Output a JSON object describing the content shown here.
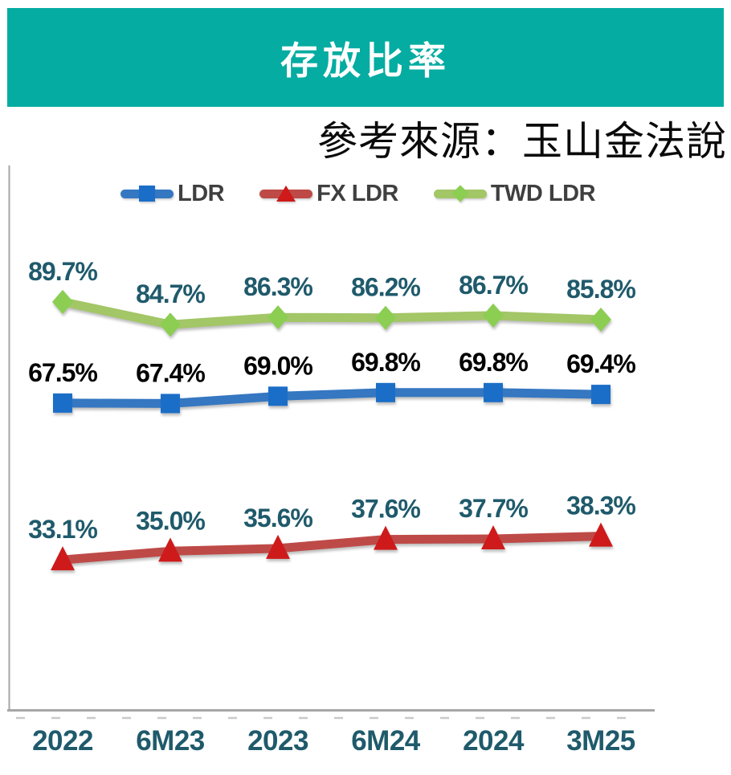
{
  "header": {
    "title": "存放比率",
    "bg_color": "#04ACA1",
    "text_color": "#FFFFFF"
  },
  "source_note": "參考來源：玉山金法說",
  "colors": {
    "axis_line": "#A6A6A6",
    "tick_dash": "#C9C9C9",
    "legend_text": "#3F3F3F",
    "teal_label": "#1F5A6B",
    "black_label": "#000000"
  },
  "chart_data": {
    "type": "line",
    "title": "存放比率",
    "categories": [
      "2022",
      "6M23",
      "2023",
      "6M24",
      "2024",
      "3M25"
    ],
    "series": [
      {
        "name": "LDR",
        "marker": "square",
        "line_color": "#3577C1",
        "marker_color": "#1B6EC7",
        "label_color": "#000000",
        "values": [
          67.5,
          67.4,
          69.0,
          69.8,
          69.8,
          69.4
        ]
      },
      {
        "name": "FX LDR",
        "marker": "triangle",
        "line_color": "#BE4A47",
        "marker_color": "#CE1A1A",
        "label_color": "#1F5A6B",
        "values": [
          33.1,
          35.0,
          35.6,
          37.6,
          37.7,
          38.3
        ]
      },
      {
        "name": "TWD LDR",
        "marker": "diamond",
        "line_color": "#A3C667",
        "marker_color": "#8BCE52",
        "label_color": "#1F5A6B",
        "values": [
          89.7,
          84.7,
          86.3,
          86.2,
          86.7,
          85.8
        ]
      }
    ],
    "value_suffix": "%",
    "data_labels": true,
    "ylim": [
      0,
      120
    ],
    "grid": false,
    "legend_position": "top",
    "x_tick_color": "#1F5A6B"
  }
}
